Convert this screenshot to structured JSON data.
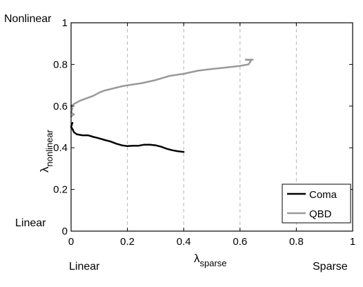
{
  "chart_data": {
    "type": "line",
    "xlabel": "λ",
    "xlabel_sub": "sparse",
    "ylabel": "λ",
    "ylabel_sub": "nonlinear",
    "xlim": [
      0,
      1
    ],
    "ylim": [
      0,
      1
    ],
    "xticks": [
      "0",
      "0.2",
      "0.4",
      "0.6",
      "0.8",
      "1"
    ],
    "yticks": [
      "0",
      "0.2",
      "0.4",
      "0.6",
      "0.8",
      "1"
    ],
    "xtick_values": [
      0,
      0.2,
      0.4,
      0.6,
      0.8,
      1
    ],
    "ytick_values": [
      0,
      0.2,
      0.4,
      0.6,
      0.8,
      1
    ],
    "grid": "vertical dashed",
    "legend": "bottom-right",
    "corner_labels": {
      "y_top": "Nonlinear",
      "y_bottom": "Linear",
      "x_left": "Linear",
      "x_right": "Sparse"
    },
    "series": [
      {
        "name": "Coma",
        "color": "#000000",
        "points": [
          [
            0.005,
            0.52
          ],
          [
            0.0,
            0.5
          ],
          [
            0.005,
            0.49
          ],
          [
            0.01,
            0.475
          ],
          [
            0.02,
            0.465
          ],
          [
            0.04,
            0.46
          ],
          [
            0.06,
            0.46
          ],
          [
            0.08,
            0.452
          ],
          [
            0.1,
            0.445
          ],
          [
            0.12,
            0.437
          ],
          [
            0.14,
            0.43
          ],
          [
            0.16,
            0.42
          ],
          [
            0.18,
            0.412
          ],
          [
            0.2,
            0.408
          ],
          [
            0.22,
            0.41
          ],
          [
            0.24,
            0.41
          ],
          [
            0.26,
            0.415
          ],
          [
            0.28,
            0.415
          ],
          [
            0.3,
            0.412
          ],
          [
            0.32,
            0.405
          ],
          [
            0.34,
            0.395
          ],
          [
            0.36,
            0.388
          ],
          [
            0.38,
            0.383
          ],
          [
            0.4,
            0.38
          ]
        ]
      },
      {
        "name": "QBD",
        "color": "#999999",
        "points": [
          [
            0.0,
            0.55
          ],
          [
            0.01,
            0.56
          ],
          [
            0.0,
            0.57
          ],
          [
            0.005,
            0.59
          ],
          [
            0.0,
            0.6
          ],
          [
            0.01,
            0.61
          ],
          [
            0.03,
            0.625
          ],
          [
            0.05,
            0.635
          ],
          [
            0.08,
            0.65
          ],
          [
            0.1,
            0.665
          ],
          [
            0.12,
            0.675
          ],
          [
            0.15,
            0.685
          ],
          [
            0.18,
            0.695
          ],
          [
            0.2,
            0.7
          ],
          [
            0.25,
            0.71
          ],
          [
            0.3,
            0.725
          ],
          [
            0.35,
            0.745
          ],
          [
            0.4,
            0.755
          ],
          [
            0.45,
            0.77
          ],
          [
            0.5,
            0.778
          ],
          [
            0.55,
            0.785
          ],
          [
            0.6,
            0.793
          ],
          [
            0.63,
            0.8
          ],
          [
            0.64,
            0.82
          ],
          [
            0.62,
            0.823
          ],
          [
            0.645,
            0.823
          ]
        ]
      }
    ]
  }
}
